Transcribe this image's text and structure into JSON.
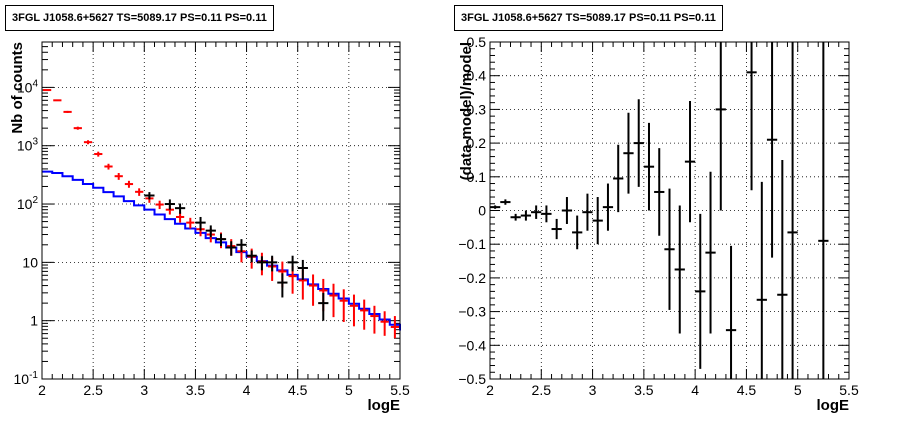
{
  "chart_data": [
    {
      "type": "histogram",
      "title": "3FGL J1058.6+5627 TS=5089.17 PS=0.11 PS=0.11",
      "xlabel": "logE",
      "ylabel": "Nb of counts",
      "xlim": [
        2,
        5.5
      ],
      "ylim": [
        0.1,
        60000
      ],
      "yscale": "log",
      "grid": true,
      "x_ticks": [
        "2",
        "2.5",
        "3",
        "3.5",
        "4",
        "4.5",
        "5",
        "5.5"
      ],
      "y_ticks": [
        "10^{-1}",
        "1",
        "10",
        "10^{2}",
        "10^{3}",
        "10^{4}"
      ],
      "bin_edges": [
        2.0,
        2.1,
        2.2,
        2.3,
        2.4,
        2.5,
        2.6,
        2.7,
        2.8,
        2.9,
        3.0,
        3.1,
        3.2,
        3.3,
        3.4,
        3.5,
        3.6,
        3.7,
        3.8,
        3.9,
        4.0,
        4.1,
        4.2,
        4.3,
        4.4,
        4.5,
        4.6,
        4.7,
        4.8,
        4.9,
        5.0,
        5.1,
        5.2,
        5.3,
        5.4,
        5.5
      ],
      "series": [
        {
          "kind": "model-step",
          "color": "#0000ff",
          "values": [
            360,
            340,
            300,
            260,
            220,
            190,
            160,
            135,
            112,
            95,
            80,
            66,
            55,
            46,
            38,
            32,
            26,
            22,
            18,
            15,
            12.5,
            10.5,
            8.8,
            7.3,
            6.1,
            5.1,
            4.2,
            3.5,
            2.9,
            2.4,
            1.95,
            1.6,
            1.3,
            1.05,
            0.85,
            0.68
          ]
        },
        {
          "kind": "model-errors",
          "color": "#ff0000",
          "values": [
            9000,
            6000,
            3800,
            2000,
            1150,
            720,
            440,
            300,
            220,
            162,
            125,
            98,
            80,
            60,
            48,
            37,
            30,
            25,
            19,
            15.5,
            12.5,
            10.3,
            8.5,
            7.0,
            5.8,
            4.9,
            4.0,
            3.3,
            2.7,
            2.2,
            1.8,
            1.5,
            1.2,
            0.96,
            0.78
          ],
          "err_low": [
            8810,
            5840,
            3650,
            1880,
            1060,
            650,
            390,
            260,
            190,
            138,
            105,
            82,
            66,
            48,
            38,
            28,
            22,
            17.5,
            13,
            10,
            7.8,
            6.0,
            4.8,
            3.7,
            2.9,
            2.3,
            1.8,
            1.45,
            1.15,
            0.95,
            0.8,
            0.7,
            0.6,
            0.55,
            0.5
          ],
          "err_high": [
            9190,
            6160,
            3950,
            2120,
            1240,
            790,
            490,
            340,
            250,
            186,
            145,
            114,
            94,
            72,
            58,
            46,
            38,
            32.5,
            25,
            21,
            17.2,
            14.6,
            12.2,
            10.3,
            8.7,
            7.5,
            6.2,
            5.2,
            4.3,
            3.45,
            2.8,
            2.3,
            1.8,
            1.45,
            1.2
          ]
        },
        {
          "kind": "data",
          "color": "#000000",
          "x": [
            3.05,
            3.25,
            3.35,
            3.55,
            3.65,
            3.75,
            3.85,
            3.95,
            4.05,
            4.15,
            4.25,
            4.35,
            4.45,
            4.55,
            4.75
          ],
          "values": [
            140,
            100,
            85,
            48,
            35,
            25,
            18,
            20,
            13,
            10,
            10,
            4.5,
            10,
            8,
            2
          ],
          "err_low": [
            120,
            80,
            68,
            35,
            27,
            19,
            13,
            15,
            10,
            7.3,
            7,
            2.5,
            7,
            5,
            1
          ],
          "err_high": [
            160,
            120,
            102,
            60,
            43,
            31,
            23,
            25,
            16,
            12.7,
            13,
            6.5,
            13,
            11,
            3
          ]
        }
      ]
    },
    {
      "type": "scatter-errorbars",
      "title": "3FGL J1058.6+5627 TS=5089.17 PS=0.11 PS=0.11",
      "xlabel": "logE",
      "ylabel": "(data-model)/model",
      "xlim": [
        2,
        5.5
      ],
      "ylim": [
        -0.5,
        0.5
      ],
      "grid": true,
      "x_ticks": [
        "2",
        "2.5",
        "3",
        "3.5",
        "4",
        "4.5",
        "5",
        "5.5"
      ],
      "y_ticks": [
        "-0.5",
        "-0.4",
        "-0.3",
        "-0.2",
        "-0.1",
        "0",
        "0.1",
        "0.2",
        "0.3",
        "0.4",
        "0.5"
      ],
      "points": [
        {
          "x": 2.05,
          "y": 0.01,
          "elo": 0.005,
          "ehi": 0.005
        },
        {
          "x": 2.15,
          "y": 0.025,
          "elo": 0.008,
          "ehi": 0.008
        },
        {
          "x": 2.25,
          "y": -0.02,
          "elo": 0.01,
          "ehi": 0.01
        },
        {
          "x": 2.35,
          "y": -0.015,
          "elo": 0.015,
          "ehi": 0.015
        },
        {
          "x": 2.45,
          "y": -0.005,
          "elo": 0.02,
          "ehi": 0.02
        },
        {
          "x": 2.55,
          "y": -0.01,
          "elo": 0.025,
          "ehi": 0.025
        },
        {
          "x": 2.65,
          "y": -0.055,
          "elo": 0.03,
          "ehi": 0.03
        },
        {
          "x": 2.75,
          "y": 0.0,
          "elo": 0.04,
          "ehi": 0.04
        },
        {
          "x": 2.85,
          "y": -0.065,
          "elo": 0.05,
          "ehi": 0.05
        },
        {
          "x": 2.95,
          "y": -0.005,
          "elo": 0.055,
          "ehi": 0.055
        },
        {
          "x": 3.05,
          "y": -0.03,
          "elo": 0.07,
          "ehi": 0.07
        },
        {
          "x": 3.15,
          "y": 0.01,
          "elo": 0.07,
          "ehi": 0.07
        },
        {
          "x": 3.25,
          "y": 0.095,
          "elo": 0.1,
          "ehi": 0.1
        },
        {
          "x": 3.35,
          "y": 0.17,
          "elo": 0.12,
          "ehi": 0.12
        },
        {
          "x": 3.45,
          "y": 0.2,
          "elo": 0.13,
          "ehi": 0.13
        },
        {
          "x": 3.55,
          "y": 0.13,
          "elo": 0.13,
          "ehi": 0.13
        },
        {
          "x": 3.65,
          "y": 0.055,
          "elo": 0.13,
          "ehi": 0.13
        },
        {
          "x": 3.75,
          "y": -0.115,
          "elo": 0.18,
          "ehi": 0.18
        },
        {
          "x": 3.85,
          "y": -0.175,
          "elo": 0.19,
          "ehi": 0.19
        },
        {
          "x": 3.95,
          "y": 0.145,
          "elo": 0.18,
          "ehi": 0.18
        },
        {
          "x": 4.05,
          "y": -0.24,
          "elo": 0.23,
          "ehi": 0.23
        },
        {
          "x": 4.15,
          "y": -0.125,
          "elo": 0.24,
          "ehi": 0.24
        },
        {
          "x": 4.25,
          "y": 0.3,
          "elo": 0.3,
          "ehi": 0.3
        },
        {
          "x": 4.35,
          "y": -0.355,
          "elo": 0.25,
          "ehi": 0.25
        },
        {
          "x": 4.55,
          "y": 0.41,
          "elo": 0.35,
          "ehi": 0.35
        },
        {
          "x": 4.65,
          "y": -0.265,
          "elo": 0.35,
          "ehi": 0.35
        },
        {
          "x": 4.75,
          "y": 0.21,
          "elo": 0.35,
          "ehi": 0.35
        },
        {
          "x": 4.85,
          "y": -0.25,
          "elo": 0.4,
          "ehi": 0.4
        },
        {
          "x": 4.95,
          "y": -0.065,
          "elo": 0.5,
          "ehi": 0.6
        },
        {
          "x": 5.25,
          "y": -0.09,
          "elo": 0.6,
          "ehi": 0.6
        }
      ]
    }
  ]
}
